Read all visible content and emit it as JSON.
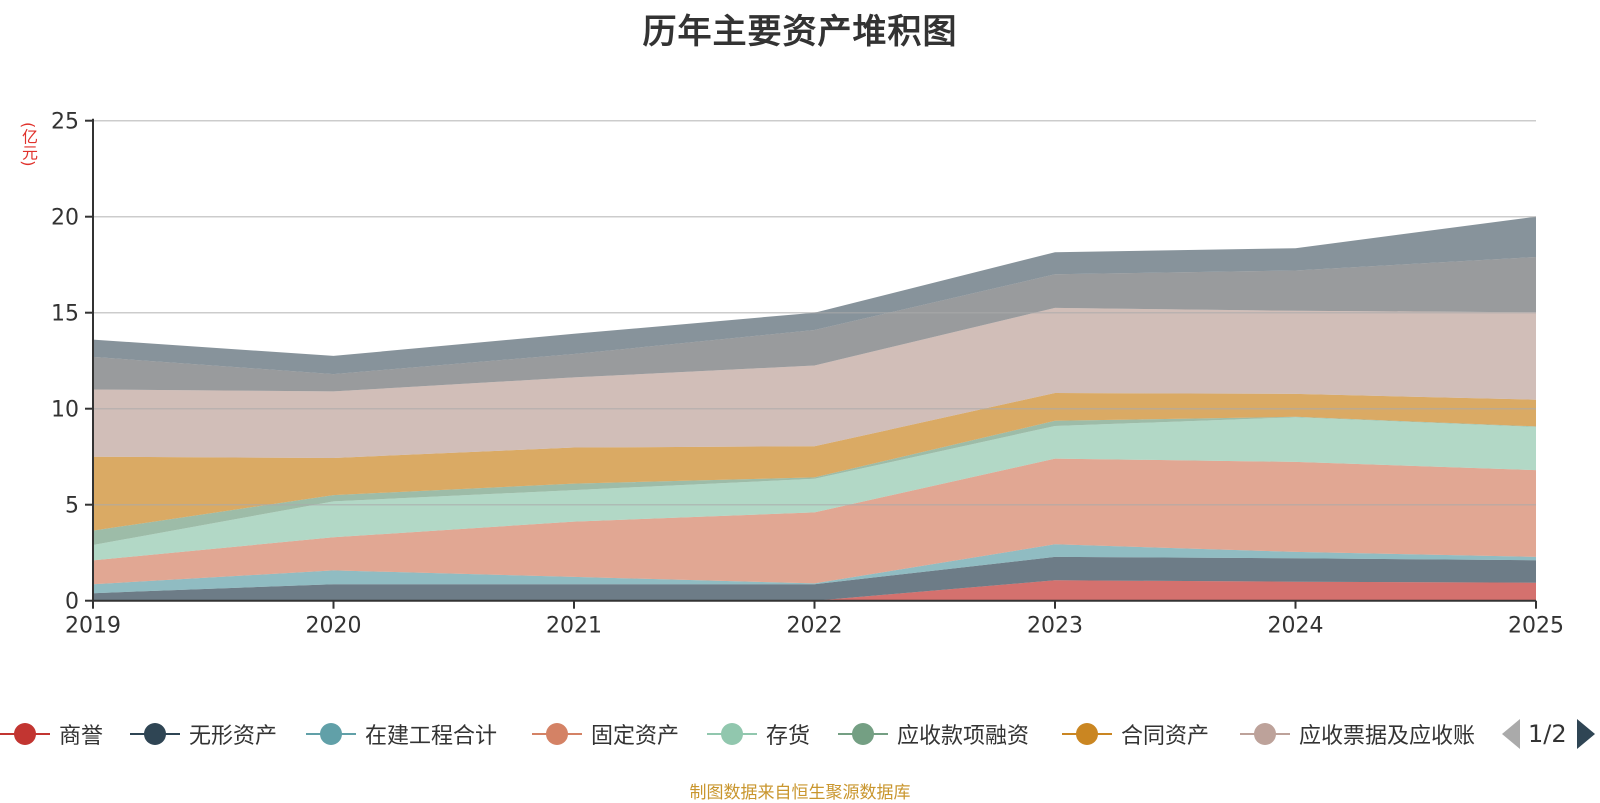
{
  "chart_data": {
    "type": "area",
    "stacked": true,
    "title": "历年主要资产堆积图",
    "ylabel": "(亿元)",
    "xlabel": "",
    "categories": [
      "2019",
      "2020",
      "2021",
      "2022",
      "2023",
      "2024",
      "2025"
    ],
    "ylim": [
      0,
      25
    ],
    "yticks": [
      "0",
      "5",
      "10",
      "15",
      "20",
      "25"
    ],
    "grid": true,
    "legend_position": "bottom",
    "series": [
      {
        "name": "商誉",
        "color": "#c23531",
        "values": [
          0,
          0,
          0,
          0,
          1.06,
          0.99,
          0.94
        ]
      },
      {
        "name": "无形资产",
        "color": "#2f4554",
        "values": [
          0.39,
          0.86,
          0.86,
          0.86,
          1.22,
          1.22,
          1.17
        ]
      },
      {
        "name": "在建工程合计",
        "color": "#61a0a8",
        "values": [
          0.47,
          0.72,
          0.38,
          0.04,
          0.66,
          0.33,
          0.17
        ]
      },
      {
        "name": "固定资产",
        "color": "#d48265",
        "values": [
          1.24,
          1.72,
          2.88,
          3.7,
          4.46,
          4.69,
          4.52
        ]
      },
      {
        "name": "存货",
        "color": "#91c7ae",
        "values": [
          0.8,
          1.87,
          1.64,
          1.75,
          1.7,
          2.32,
          2.25
        ]
      },
      {
        "name": "应收款项融资",
        "color": "#749f83",
        "values": [
          0.75,
          0.33,
          0.34,
          0.07,
          0.27,
          0.03,
          0.03
        ]
      },
      {
        "name": "合同资产",
        "color": "#ca8622",
        "values": [
          3.85,
          1.93,
          1.88,
          1.62,
          1.45,
          1.19,
          1.39
        ]
      },
      {
        "name": "应收票据及应收账",
        "color": "#bda29a",
        "values": [
          3.5,
          3.47,
          3.65,
          4.21,
          4.43,
          4.33,
          4.55
        ]
      },
      {
        "name": "",
        "color": "#6e7074",
        "values": [
          1.7,
          0.9,
          1.22,
          1.85,
          1.75,
          2.1,
          2.88
        ]
      },
      {
        "name": "",
        "color": "#546570",
        "values": [
          0.9,
          0.95,
          1.05,
          0.9,
          1.15,
          1.16,
          2.1
        ]
      }
    ]
  },
  "legend": {
    "page": "1/2"
  },
  "source_note": "制图数据来自恒生聚源数据库"
}
